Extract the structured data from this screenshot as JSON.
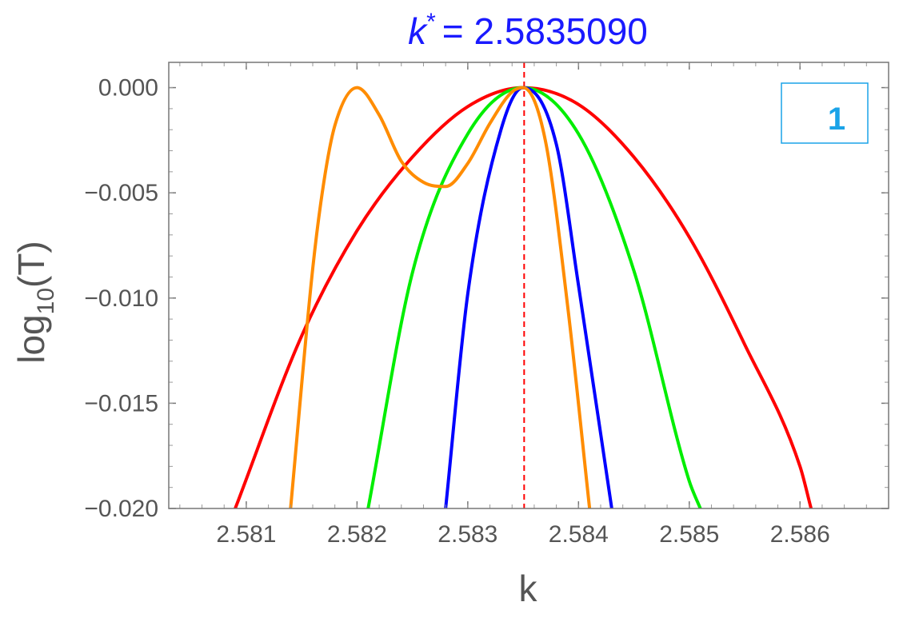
{
  "chart_data": {
    "type": "line",
    "title_symbol": "k",
    "title_superscript": "*",
    "title_value": "= 2.5835090",
    "xlabel": "k",
    "ylabel_main": "log",
    "ylabel_sub": "10",
    "ylabel_rest": "(T)",
    "panel_label": "1",
    "xlim": [
      2.5803,
      2.5868
    ],
    "ylim": [
      -0.02,
      0.0012
    ],
    "x_ticks": [
      2.581,
      2.582,
      2.583,
      2.584,
      2.585,
      2.586
    ],
    "x_tick_labels": [
      "2.581",
      "2.582",
      "2.583",
      "2.584",
      "2.585",
      "2.586"
    ],
    "y_ticks": [
      0.0,
      -0.005,
      -0.01,
      -0.015,
      -0.02
    ],
    "y_tick_labels": [
      "0.000",
      "−0.005",
      "−0.010",
      "−0.015",
      "−0.020"
    ],
    "reference_line": {
      "x": 2.583509,
      "color": "#ff0000",
      "style": "dashed"
    },
    "grid": false,
    "legend": "none",
    "series": [
      {
        "color": "#ff0000",
        "x": [
          2.5809,
          2.5815,
          2.582,
          2.5825,
          2.583,
          2.5835,
          2.584,
          2.5845,
          2.585,
          2.5855,
          2.586,
          2.5861
        ],
        "y": [
          -0.02,
          -0.0118,
          -0.0068,
          -0.0033,
          -0.0009,
          0.0,
          -0.0008,
          -0.0033,
          -0.0071,
          -0.0122,
          -0.018,
          -0.02
        ]
      },
      {
        "color": "#00ee00",
        "x": [
          2.5821,
          2.5825,
          2.583,
          2.5835,
          2.584,
          2.5845,
          2.585,
          2.5851
        ],
        "y": [
          -0.02,
          -0.0088,
          -0.0022,
          0.0,
          -0.0022,
          -0.0087,
          -0.0187,
          -0.02
        ]
      },
      {
        "color": "#0000ff",
        "x": [
          2.5828,
          2.583,
          2.5833,
          2.5835,
          2.5838,
          2.584,
          2.5843
        ],
        "y": [
          -0.02,
          -0.0098,
          -0.002,
          0.0,
          -0.0027,
          -0.0094,
          -0.02
        ]
      },
      {
        "color": "#ff8c00",
        "x": [
          2.5814,
          2.5816,
          2.5817,
          2.5818,
          2.582,
          2.5822,
          2.5824,
          2.5826,
          2.5828,
          2.583,
          2.5832,
          2.5834,
          2.5835,
          2.5837,
          2.5839,
          2.5841
        ],
        "y": [
          -0.02,
          -0.0086,
          -0.0045,
          -0.0018,
          0.0,
          -0.0013,
          -0.0035,
          -0.0045,
          -0.0047,
          -0.0036,
          -0.0017,
          -0.0002,
          0.0,
          -0.0025,
          -0.0103,
          -0.02
        ]
      }
    ]
  }
}
